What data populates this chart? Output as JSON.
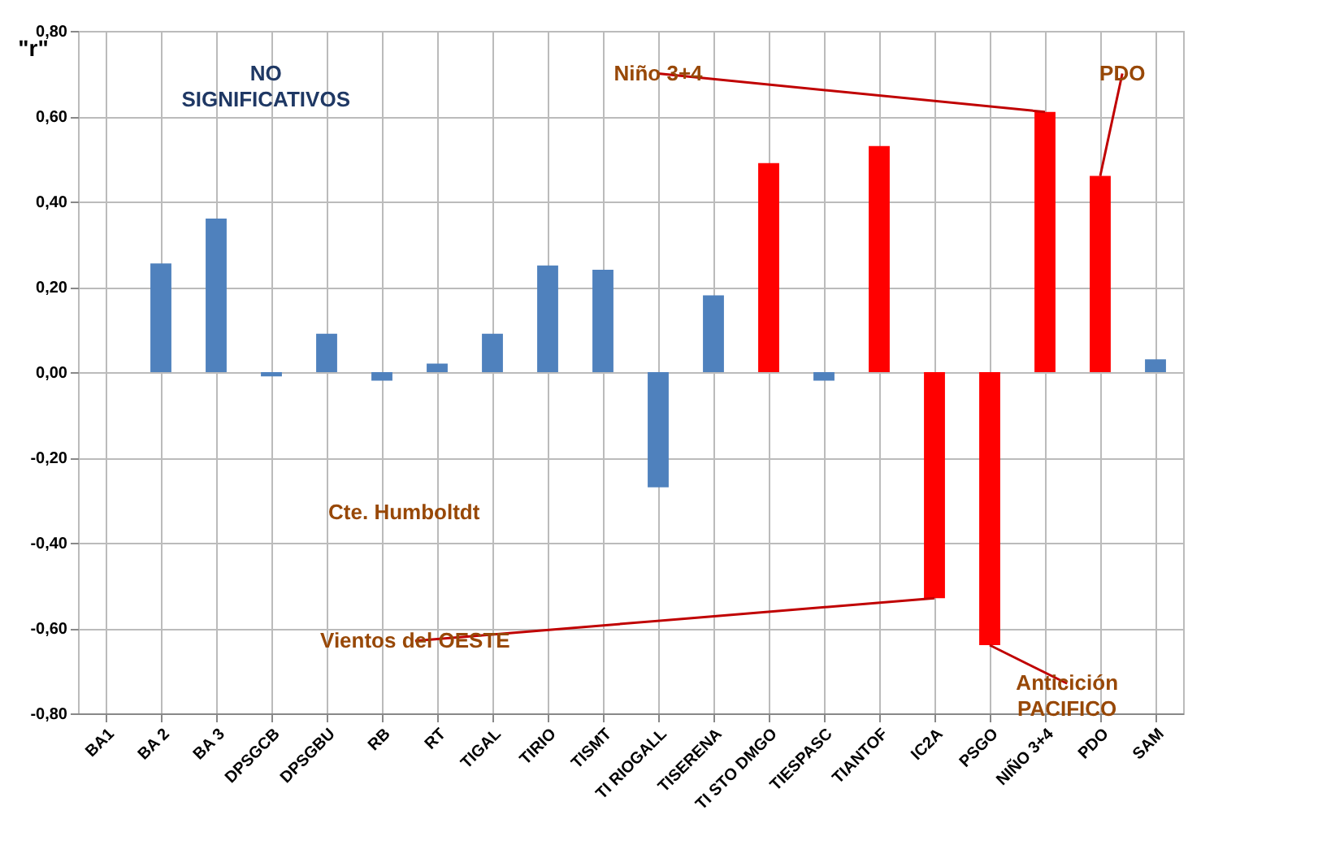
{
  "chart_data": {
    "type": "bar",
    "ylabel": "\"r\"",
    "categories": [
      "BA1",
      "BA 2",
      "BA 3",
      "DPSGCB",
      "DPSGBU",
      "RB",
      "RT",
      "TIGAL",
      "TIRIO",
      "TISMT",
      "TI RIOGALL",
      "TISERENA",
      "TI STO DMGO",
      "TIESPASC",
      "TIANTOF",
      "IC2A",
      "PSGO",
      "NIÑO 3+4",
      "PDO",
      "SAM"
    ],
    "values": [
      0,
      0.255,
      0.36,
      -0.01,
      0.09,
      -0.02,
      0.02,
      0.09,
      0.25,
      0.24,
      -0.27,
      0.18,
      0.49,
      -0.02,
      0.53,
      -0.53,
      -0.64,
      0.61,
      0.46,
      0.03
    ],
    "colors": [
      "#4f81bd",
      "#4f81bd",
      "#4f81bd",
      "#4f81bd",
      "#4f81bd",
      "#4f81bd",
      "#4f81bd",
      "#4f81bd",
      "#4f81bd",
      "#4f81bd",
      "#4f81bd",
      "#4f81bd",
      "#ff0000",
      "#4f81bd",
      "#ff0000",
      "#ff0000",
      "#ff0000",
      "#ff0000",
      "#ff0000",
      "#4f81bd"
    ],
    "ylim": [
      -0.8,
      0.8
    ],
    "yticks": [
      {
        "value": -0.8,
        "label": "-0,80"
      },
      {
        "value": -0.6,
        "label": "-0,60"
      },
      {
        "value": -0.4,
        "label": "-0,40"
      },
      {
        "value": -0.2,
        "label": "-0,20"
      },
      {
        "value": 0,
        "label": "0,00"
      },
      {
        "value": 0.2,
        "label": "0,20"
      },
      {
        "value": 0.4,
        "label": "0,40"
      },
      {
        "value": 0.6,
        "label": "0,60"
      },
      {
        "value": 0.8,
        "label": "0,80"
      }
    ],
    "grid": true,
    "annotations": [
      "NO\nSIGNIFICATIVOS",
      {
        "text": "Niño 3+4",
        "x": "NIÑO 3+4",
        "y": 0.61
      },
      {
        "text": "PDO",
        "x": "PDO",
        "y": 0.46
      },
      "Cte. Humboltdt",
      {
        "text": "Vientos del OESTE",
        "x": "IC2A",
        "y": -0.53
      },
      {
        "text": "Anticición\nPACIFICO",
        "x": "PSGO",
        "y": -0.64
      }
    ]
  }
}
